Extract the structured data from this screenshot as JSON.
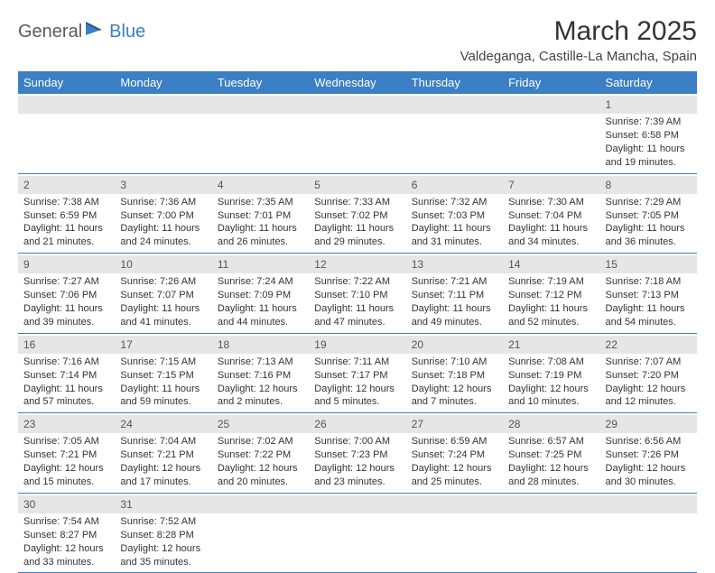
{
  "logo": {
    "part1": "General",
    "part2": "Blue"
  },
  "title": "March 2025",
  "location": "Valdeganga, Castille-La Mancha, Spain",
  "colors": {
    "header_bg": "#3b7fc4",
    "header_fg": "#ffffff",
    "daynum_bg": "#e6e6e6",
    "daynum_fg": "#555555",
    "border": "#3b7fc4",
    "text": "#333333"
  },
  "weekdays": [
    "Sunday",
    "Monday",
    "Tuesday",
    "Wednesday",
    "Thursday",
    "Friday",
    "Saturday"
  ],
  "weeks": [
    [
      null,
      null,
      null,
      null,
      null,
      null,
      {
        "n": "1",
        "sunrise": "7:39 AM",
        "sunset": "6:58 PM",
        "daylight": "11 hours and 19 minutes."
      }
    ],
    [
      {
        "n": "2",
        "sunrise": "7:38 AM",
        "sunset": "6:59 PM",
        "daylight": "11 hours and 21 minutes."
      },
      {
        "n": "3",
        "sunrise": "7:36 AM",
        "sunset": "7:00 PM",
        "daylight": "11 hours and 24 minutes."
      },
      {
        "n": "4",
        "sunrise": "7:35 AM",
        "sunset": "7:01 PM",
        "daylight": "11 hours and 26 minutes."
      },
      {
        "n": "5",
        "sunrise": "7:33 AM",
        "sunset": "7:02 PM",
        "daylight": "11 hours and 29 minutes."
      },
      {
        "n": "6",
        "sunrise": "7:32 AM",
        "sunset": "7:03 PM",
        "daylight": "11 hours and 31 minutes."
      },
      {
        "n": "7",
        "sunrise": "7:30 AM",
        "sunset": "7:04 PM",
        "daylight": "11 hours and 34 minutes."
      },
      {
        "n": "8",
        "sunrise": "7:29 AM",
        "sunset": "7:05 PM",
        "daylight": "11 hours and 36 minutes."
      }
    ],
    [
      {
        "n": "9",
        "sunrise": "7:27 AM",
        "sunset": "7:06 PM",
        "daylight": "11 hours and 39 minutes."
      },
      {
        "n": "10",
        "sunrise": "7:26 AM",
        "sunset": "7:07 PM",
        "daylight": "11 hours and 41 minutes."
      },
      {
        "n": "11",
        "sunrise": "7:24 AM",
        "sunset": "7:09 PM",
        "daylight": "11 hours and 44 minutes."
      },
      {
        "n": "12",
        "sunrise": "7:22 AM",
        "sunset": "7:10 PM",
        "daylight": "11 hours and 47 minutes."
      },
      {
        "n": "13",
        "sunrise": "7:21 AM",
        "sunset": "7:11 PM",
        "daylight": "11 hours and 49 minutes."
      },
      {
        "n": "14",
        "sunrise": "7:19 AM",
        "sunset": "7:12 PM",
        "daylight": "11 hours and 52 minutes."
      },
      {
        "n": "15",
        "sunrise": "7:18 AM",
        "sunset": "7:13 PM",
        "daylight": "11 hours and 54 minutes."
      }
    ],
    [
      {
        "n": "16",
        "sunrise": "7:16 AM",
        "sunset": "7:14 PM",
        "daylight": "11 hours and 57 minutes."
      },
      {
        "n": "17",
        "sunrise": "7:15 AM",
        "sunset": "7:15 PM",
        "daylight": "11 hours and 59 minutes."
      },
      {
        "n": "18",
        "sunrise": "7:13 AM",
        "sunset": "7:16 PM",
        "daylight": "12 hours and 2 minutes."
      },
      {
        "n": "19",
        "sunrise": "7:11 AM",
        "sunset": "7:17 PM",
        "daylight": "12 hours and 5 minutes."
      },
      {
        "n": "20",
        "sunrise": "7:10 AM",
        "sunset": "7:18 PM",
        "daylight": "12 hours and 7 minutes."
      },
      {
        "n": "21",
        "sunrise": "7:08 AM",
        "sunset": "7:19 PM",
        "daylight": "12 hours and 10 minutes."
      },
      {
        "n": "22",
        "sunrise": "7:07 AM",
        "sunset": "7:20 PM",
        "daylight": "12 hours and 12 minutes."
      }
    ],
    [
      {
        "n": "23",
        "sunrise": "7:05 AM",
        "sunset": "7:21 PM",
        "daylight": "12 hours and 15 minutes."
      },
      {
        "n": "24",
        "sunrise": "7:04 AM",
        "sunset": "7:21 PM",
        "daylight": "12 hours and 17 minutes."
      },
      {
        "n": "25",
        "sunrise": "7:02 AM",
        "sunset": "7:22 PM",
        "daylight": "12 hours and 20 minutes."
      },
      {
        "n": "26",
        "sunrise": "7:00 AM",
        "sunset": "7:23 PM",
        "daylight": "12 hours and 23 minutes."
      },
      {
        "n": "27",
        "sunrise": "6:59 AM",
        "sunset": "7:24 PM",
        "daylight": "12 hours and 25 minutes."
      },
      {
        "n": "28",
        "sunrise": "6:57 AM",
        "sunset": "7:25 PM",
        "daylight": "12 hours and 28 minutes."
      },
      {
        "n": "29",
        "sunrise": "6:56 AM",
        "sunset": "7:26 PM",
        "daylight": "12 hours and 30 minutes."
      }
    ],
    [
      {
        "n": "30",
        "sunrise": "7:54 AM",
        "sunset": "8:27 PM",
        "daylight": "12 hours and 33 minutes."
      },
      {
        "n": "31",
        "sunrise": "7:52 AM",
        "sunset": "8:28 PM",
        "daylight": "12 hours and 35 minutes."
      },
      null,
      null,
      null,
      null,
      null
    ]
  ],
  "labels": {
    "sunrise": "Sunrise:",
    "sunset": "Sunset:",
    "daylight": "Daylight:"
  }
}
